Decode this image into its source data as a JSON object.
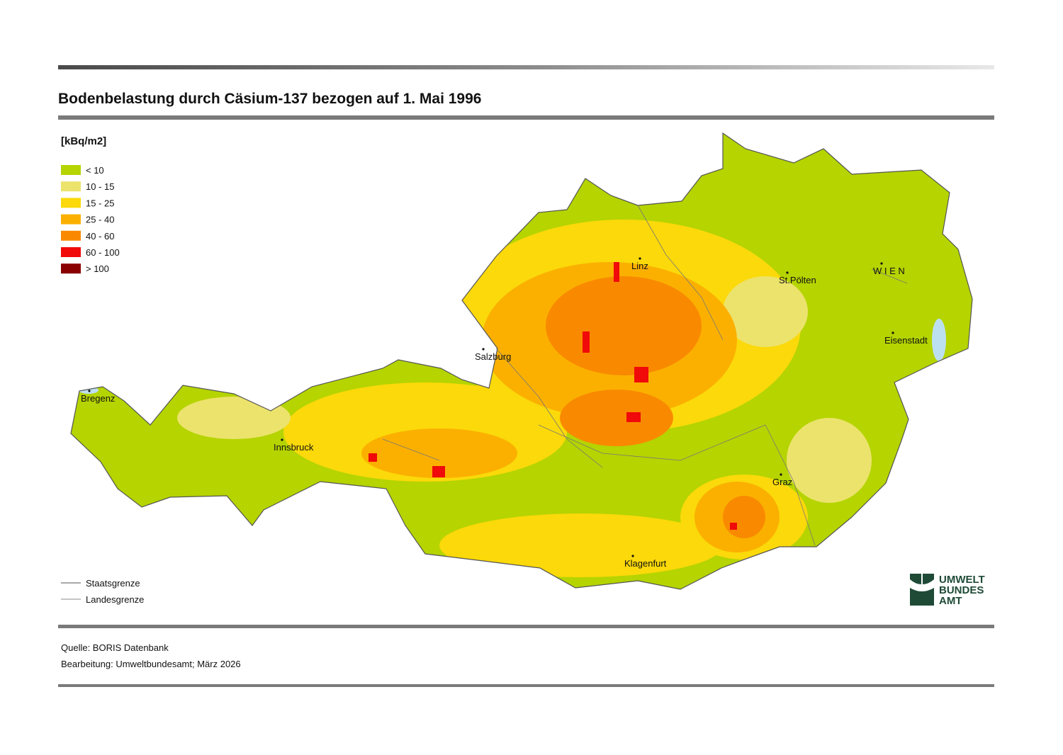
{
  "header": {
    "title": "Bodenbelastung durch Cäsium-137 bezogen auf 1. Mai 1996"
  },
  "legend": {
    "unit": "[kBq/m2]",
    "items": [
      {
        "label": "< 10",
        "color": "#b5d400"
      },
      {
        "label": "10 - 15",
        "color": "#ece36c"
      },
      {
        "label": "15 - 25",
        "color": "#fbd90a"
      },
      {
        "label": "25 - 40",
        "color": "#fbb000"
      },
      {
        "label": "40 - 60",
        "color": "#f98a00"
      },
      {
        "label": "60 - 100",
        "color": "#f00a0a"
      },
      {
        "label": "> 100",
        "color": "#8a0000"
      }
    ],
    "lines": [
      {
        "label": "Staatsgrenze"
      },
      {
        "label": "Landesgrenze"
      }
    ]
  },
  "cities": [
    {
      "label": "Linz"
    },
    {
      "label": "St.Pölten"
    },
    {
      "label": "W I E N"
    },
    {
      "label": "Eisenstadt"
    },
    {
      "label": "Salzburg"
    },
    {
      "label": "Bregenz"
    },
    {
      "label": "Innsbruck"
    },
    {
      "label": "Graz"
    },
    {
      "label": "Klagenfurt"
    }
  ],
  "logo": {
    "lines": [
      "UMWELT",
      "BUNDES",
      "AMT"
    ]
  },
  "footer": {
    "source": "Quelle: BORIS Datenbank",
    "editing": "Bearbeitung: Umweltbundesamt; März 2026"
  }
}
